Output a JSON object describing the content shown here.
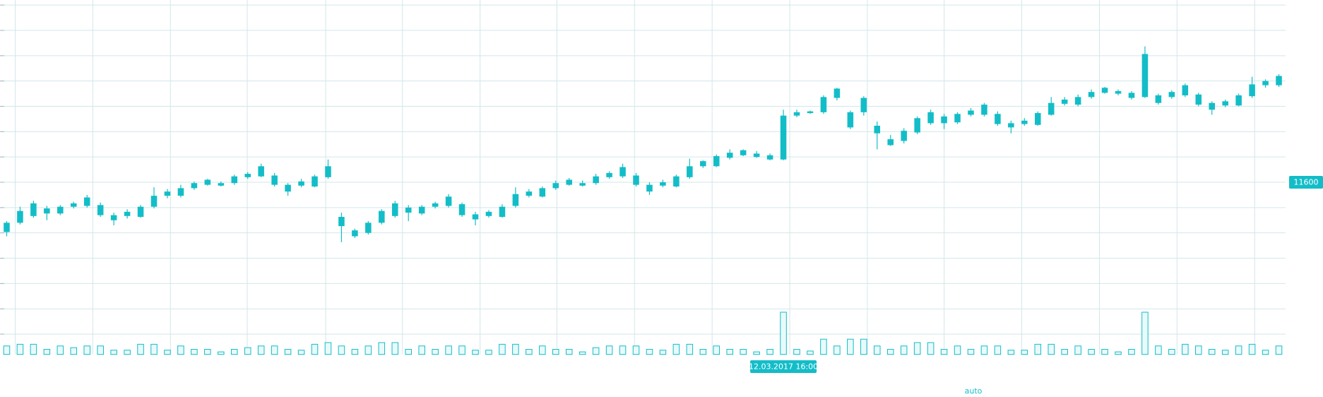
{
  "chart_data": {
    "type": "candlestick",
    "color": "#13bdc8",
    "ylim": [
      11396,
      11816
    ],
    "yticks": [
      11600
    ],
    "vlim": [
      0,
      60
    ],
    "scale_mode": "auto",
    "categories": [
      null,
      null,
      null,
      null,
      null,
      null,
      null,
      null,
      null,
      null,
      null,
      null,
      null,
      null,
      null,
      null,
      null,
      null,
      null,
      null,
      null,
      null,
      null,
      null,
      null,
      null,
      null,
      null,
      null,
      null,
      null,
      null,
      null,
      null,
      null,
      null,
      null,
      null,
      null,
      null,
      null,
      null,
      null,
      null,
      null,
      null,
      null,
      null,
      null,
      null,
      null,
      null,
      null,
      null,
      null,
      null,
      null,
      null,
      "12.03.2017 16:00",
      null,
      null,
      null,
      null,
      null,
      null,
      null,
      null,
      null,
      null,
      null,
      null,
      null,
      null,
      null,
      null,
      null,
      null,
      null,
      null,
      null,
      null,
      null,
      null,
      null,
      null,
      null,
      null,
      null,
      null,
      null,
      null,
      null,
      null,
      null,
      null,
      null
    ],
    "open": [
      11541,
      11552,
      11560,
      11563,
      11563,
      11571,
      11572,
      11561,
      11555,
      11560,
      11559,
      11571,
      11584,
      11584,
      11593,
      11597,
      11596,
      11599,
      11606,
      11607,
      11597,
      11589,
      11596,
      11595,
      11606,
      11548,
      11536,
      11540,
      11552,
      11560,
      11564,
      11563,
      11571,
      11572,
      11561,
      11556,
      11560,
      11559,
      11572,
      11584,
      11583,
      11593,
      11597,
      11596,
      11599,
      11606,
      11607,
      11597,
      11589,
      11596,
      11595,
      11606,
      11619,
      11619,
      11629,
      11632,
      11630,
      11627,
      11627,
      11679,
      11682,
      11683,
      11700,
      11665,
      11683,
      11658,
      11644,
      11649,
      11659,
      11670,
      11670,
      11671,
      11680,
      11680,
      11669,
      11665,
      11669,
      11668,
      11680,
      11693,
      11692,
      11701,
      11706,
      11705,
      11700,
      11701,
      11694,
      11701,
      11703,
      11692,
      11686,
      11691,
      11691,
      11702,
      11715,
      11715
    ],
    "high": [
      11554,
      11571,
      11578,
      11572,
      11573,
      11577,
      11585,
      11576,
      11564,
      11568,
      11573,
      11594,
      11592,
      11597,
      11601,
      11604,
      11601,
      11609,
      11612,
      11622,
      11611,
      11599,
      11604,
      11609,
      11627,
      11564,
      11545,
      11554,
      11568,
      11578,
      11573,
      11573,
      11577,
      11586,
      11576,
      11565,
      11567,
      11574,
      11594,
      11592,
      11595,
      11602,
      11605,
      11602,
      11610,
      11613,
      11622,
      11611,
      11600,
      11603,
      11609,
      11628,
      11626,
      11633,
      11639,
      11639,
      11637,
      11634,
      11686,
      11686,
      11685,
      11703,
      11712,
      11685,
      11702,
      11672,
      11656,
      11664,
      11678,
      11686,
      11681,
      11683,
      11688,
      11694,
      11684,
      11673,
      11676,
      11684,
      11701,
      11701,
      11704,
      11710,
      11713,
      11710,
      11708,
      11761,
      11705,
      11709,
      11717,
      11706,
      11696,
      11698,
      11705,
      11725,
      11722,
      11728
    ],
    "low": [
      11536,
      11550,
      11558,
      11555,
      11561,
      11569,
      11570,
      11559,
      11549,
      11557,
      11558,
      11569,
      11581,
      11582,
      11591,
      11596,
      11595,
      11597,
      11604,
      11606,
      11595,
      11584,
      11594,
      11594,
      11604,
      11529,
      11534,
      11538,
      11550,
      11558,
      11554,
      11561,
      11569,
      11570,
      11559,
      11549,
      11558,
      11558,
      11570,
      11582,
      11582,
      11591,
      11596,
      11595,
      11597,
      11604,
      11605,
      11595,
      11585,
      11594,
      11594,
      11604,
      11617,
      11618,
      11627,
      11631,
      11629,
      11626,
      11626,
      11677,
      11681,
      11681,
      11697,
      11663,
      11679,
      11639,
      11643,
      11646,
      11657,
      11668,
      11663,
      11669,
      11678,
      11678,
      11667,
      11658,
      11667,
      11667,
      11679,
      11691,
      11690,
      11699,
      11705,
      11703,
      11698,
      11700,
      11692,
      11699,
      11701,
      11690,
      11680,
      11689,
      11690,
      11700,
      11712,
      11713
    ],
    "close": [
      11552,
      11566,
      11575,
      11569,
      11571,
      11575,
      11582,
      11573,
      11561,
      11565,
      11571,
      11584,
      11589,
      11593,
      11599,
      11603,
      11599,
      11607,
      11610,
      11619,
      11608,
      11597,
      11601,
      11607,
      11619,
      11559,
      11543,
      11552,
      11566,
      11575,
      11570,
      11571,
      11575,
      11583,
      11574,
      11562,
      11565,
      11571,
      11586,
      11589,
      11593,
      11599,
      11603,
      11599,
      11607,
      11611,
      11618,
      11608,
      11597,
      11600,
      11607,
      11619,
      11625,
      11631,
      11635,
      11638,
      11634,
      11632,
      11679,
      11683,
      11684,
      11701,
      11711,
      11683,
      11700,
      11667,
      11651,
      11661,
      11676,
      11683,
      11678,
      11681,
      11685,
      11692,
      11681,
      11670,
      11673,
      11682,
      11694,
      11698,
      11701,
      11707,
      11712,
      11708,
      11706,
      11752,
      11703,
      11707,
      11715,
      11704,
      11694,
      11696,
      11703,
      11716,
      11720,
      11726
    ],
    "volume": [
      10,
      12,
      12,
      6,
      10,
      8,
      10,
      10,
      5,
      5,
      12,
      12,
      5,
      10,
      6,
      6,
      3,
      6,
      8,
      10,
      10,
      6,
      5,
      12,
      14,
      10,
      6,
      10,
      14,
      14,
      6,
      10,
      6,
      10,
      10,
      5,
      5,
      12,
      12,
      6,
      10,
      6,
      6,
      3,
      8,
      10,
      10,
      10,
      6,
      5,
      12,
      12,
      6,
      10,
      6,
      6,
      3,
      6,
      50,
      6,
      4,
      18,
      10,
      18,
      18,
      10,
      6,
      10,
      14,
      14,
      6,
      10,
      6,
      10,
      10,
      5,
      5,
      12,
      12,
      6,
      10,
      6,
      6,
      3,
      6,
      50,
      10,
      6,
      12,
      10,
      6,
      5,
      10,
      12,
      5,
      10
    ]
  }
}
